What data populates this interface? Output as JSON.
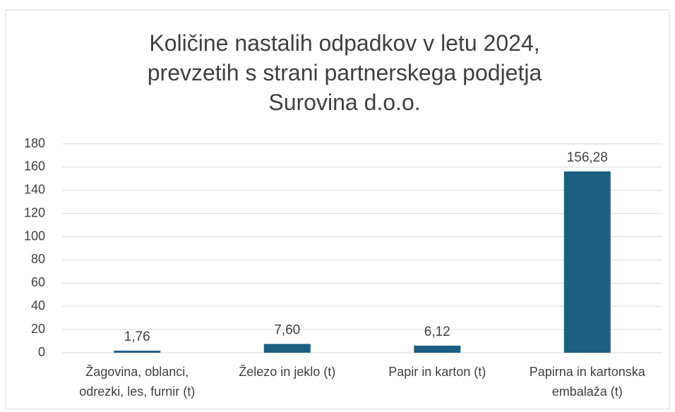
{
  "chart_data": {
    "type": "bar",
    "title": "Količine nastalih odpadkov v letu 2024,\nprevzetih s strani partnerskega podjetja\nSurovina d.o.o.",
    "categories": [
      "Žagovina, oblanci,\nodrezki, les, furnir (t)",
      "Železo in jeklo (t)",
      "Papir in karton (t)",
      "Papirna in kartonska\nembalaža (t)"
    ],
    "values": [
      1.76,
      7.6,
      6.12,
      156.28
    ],
    "value_labels": [
      "1,76",
      "7,60",
      "6,12",
      "156,28"
    ],
    "color": "#1d5f82",
    "ylim": [
      0,
      180
    ],
    "yticks": [
      0,
      20,
      40,
      60,
      80,
      100,
      120,
      140,
      160,
      180
    ],
    "grid": true
  }
}
